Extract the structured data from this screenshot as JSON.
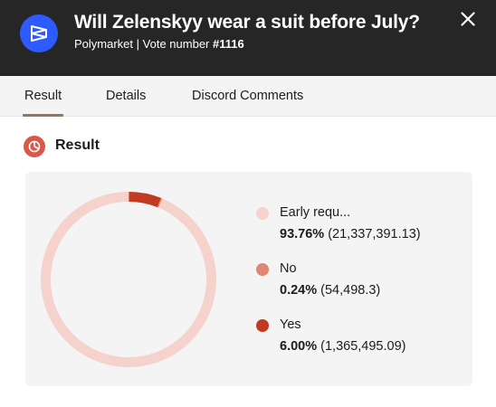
{
  "header": {
    "title": "Will Zelenskyy wear a suit before July?",
    "source": "Polymarket",
    "separator": "|",
    "vote_label": "Vote number",
    "vote_number": "#1116",
    "logo_icon": "polymarket-logo-icon",
    "close_icon": "close-icon"
  },
  "tabs": [
    {
      "label": "Result",
      "active": true
    },
    {
      "label": "Details",
      "active": false
    },
    {
      "label": "Discord Comments",
      "active": false
    }
  ],
  "section": {
    "title": "Result",
    "icon": "pie-chart-icon",
    "icon_color": "#d9584a"
  },
  "chart_data": {
    "type": "pie",
    "variant": "donut",
    "legend_position": "right",
    "categories": [
      "Early requ...",
      "No",
      "Yes"
    ],
    "values": [
      21337391.13,
      54498.3,
      1365495.09
    ],
    "percent_labels": [
      "93.76%",
      "0.24%",
      "6.00%"
    ],
    "value_labels": [
      "(21,337,391.13)",
      "(54,498.3)",
      "(1,365,495.09)"
    ],
    "colors": [
      "#f6d2cd",
      "#de8772",
      "#c23a22"
    ]
  }
}
